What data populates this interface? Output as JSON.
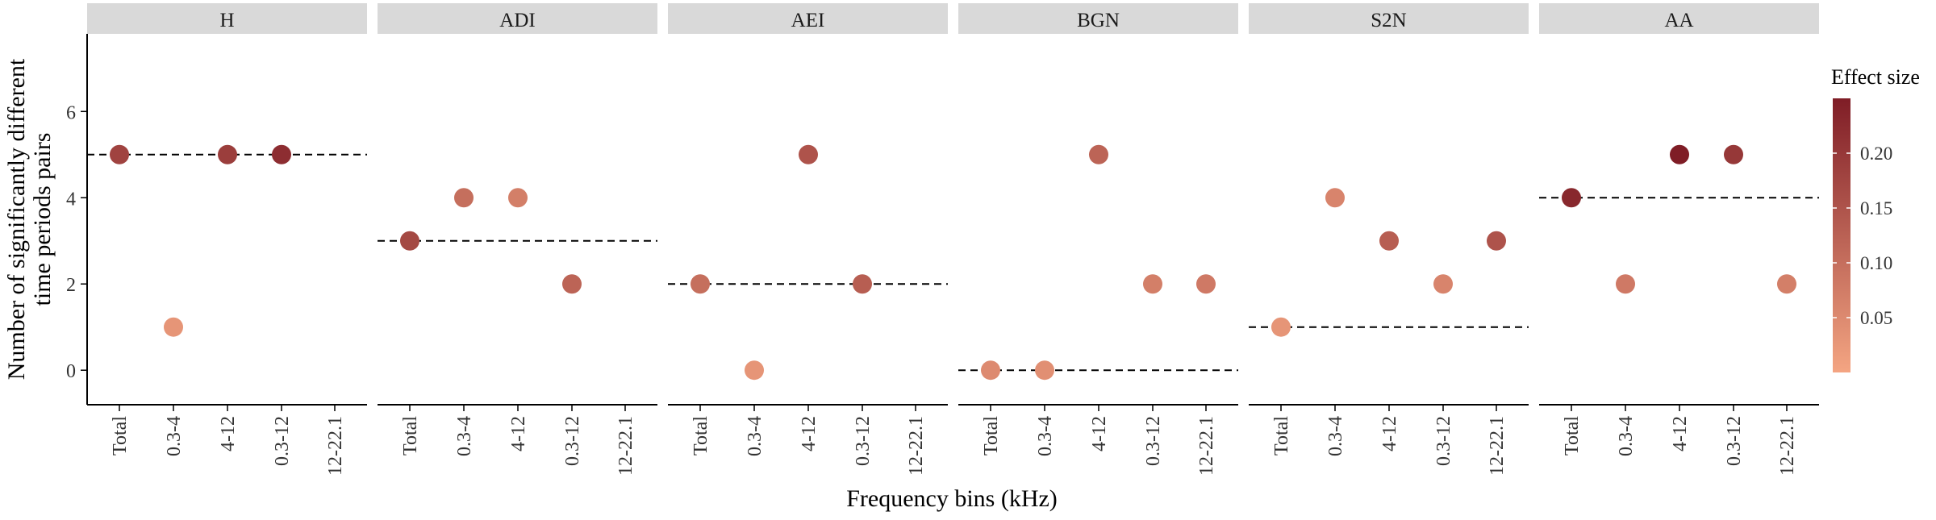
{
  "chart_data": {
    "type": "scatter",
    "ylabel_line1": "Number of significantly different",
    "ylabel_line2": "time periods pairs",
    "xlabel": "Frequency bins (kHz)",
    "categories": [
      "Total",
      "0.3-4",
      "4-12",
      "0.3-12",
      "12-22.1"
    ],
    "yticks": [
      0,
      2,
      4,
      6
    ],
    "ylim": [
      -0.8,
      7.8
    ],
    "grid": false,
    "legend": {
      "title": "Effect size",
      "position": "right",
      "ticks": [
        0.05,
        0.1,
        0.15,
        0.2
      ],
      "tick_labels": [
        "0.05",
        "0.10",
        "0.15",
        "0.20"
      ],
      "range": [
        0.0,
        0.25
      ],
      "color_low": "#f4a582",
      "color_high": "#7f1d26"
    },
    "panels": [
      {
        "name": "H",
        "reference_line": 5,
        "points": [
          {
            "category": "Total",
            "y": 5,
            "effect": 0.18
          },
          {
            "category": "0.3-4",
            "y": 1,
            "effect": 0.03
          },
          {
            "category": "4-12",
            "y": 5,
            "effect": 0.19
          },
          {
            "category": "0.3-12",
            "y": 5,
            "effect": 0.22
          }
        ]
      },
      {
        "name": "ADI",
        "reference_line": 3,
        "points": [
          {
            "category": "Total",
            "y": 3,
            "effect": 0.17
          },
          {
            "category": "0.3-4",
            "y": 4,
            "effect": 0.1
          },
          {
            "category": "4-12",
            "y": 4,
            "effect": 0.07
          },
          {
            "category": "0.3-12",
            "y": 2,
            "effect": 0.12
          }
        ]
      },
      {
        "name": "AEI",
        "reference_line": 2,
        "points": [
          {
            "category": "Total",
            "y": 2,
            "effect": 0.1
          },
          {
            "category": "0.3-4",
            "y": 0,
            "effect": 0.03
          },
          {
            "category": "4-12",
            "y": 5,
            "effect": 0.15
          },
          {
            "category": "0.3-12",
            "y": 2,
            "effect": 0.13
          }
        ]
      },
      {
        "name": "BGN",
        "reference_line": 0,
        "points": [
          {
            "category": "Total",
            "y": 0,
            "effect": 0.05
          },
          {
            "category": "0.3-4",
            "y": 0,
            "effect": 0.04
          },
          {
            "category": "4-12",
            "y": 5,
            "effect": 0.12
          },
          {
            "category": "0.3-12",
            "y": 2,
            "effect": 0.07
          },
          {
            "category": "12-22.1",
            "y": 2,
            "effect": 0.08
          }
        ]
      },
      {
        "name": "S2N",
        "reference_line": 1,
        "points": [
          {
            "category": "Total",
            "y": 1,
            "effect": 0.03
          },
          {
            "category": "0.3-4",
            "y": 4,
            "effect": 0.06
          },
          {
            "category": "4-12",
            "y": 3,
            "effect": 0.13
          },
          {
            "category": "0.3-12",
            "y": 2,
            "effect": 0.06
          },
          {
            "category": "12-22.1",
            "y": 3,
            "effect": 0.15
          }
        ]
      },
      {
        "name": "AA",
        "reference_line": 4,
        "points": [
          {
            "category": "Total",
            "y": 4,
            "effect": 0.23
          },
          {
            "category": "0.3-4",
            "y": 2,
            "effect": 0.08
          },
          {
            "category": "4-12",
            "y": 5,
            "effect": 0.25
          },
          {
            "category": "0.3-12",
            "y": 5,
            "effect": 0.2
          },
          {
            "category": "12-22.1",
            "y": 2,
            "effect": 0.07
          }
        ]
      }
    ]
  }
}
